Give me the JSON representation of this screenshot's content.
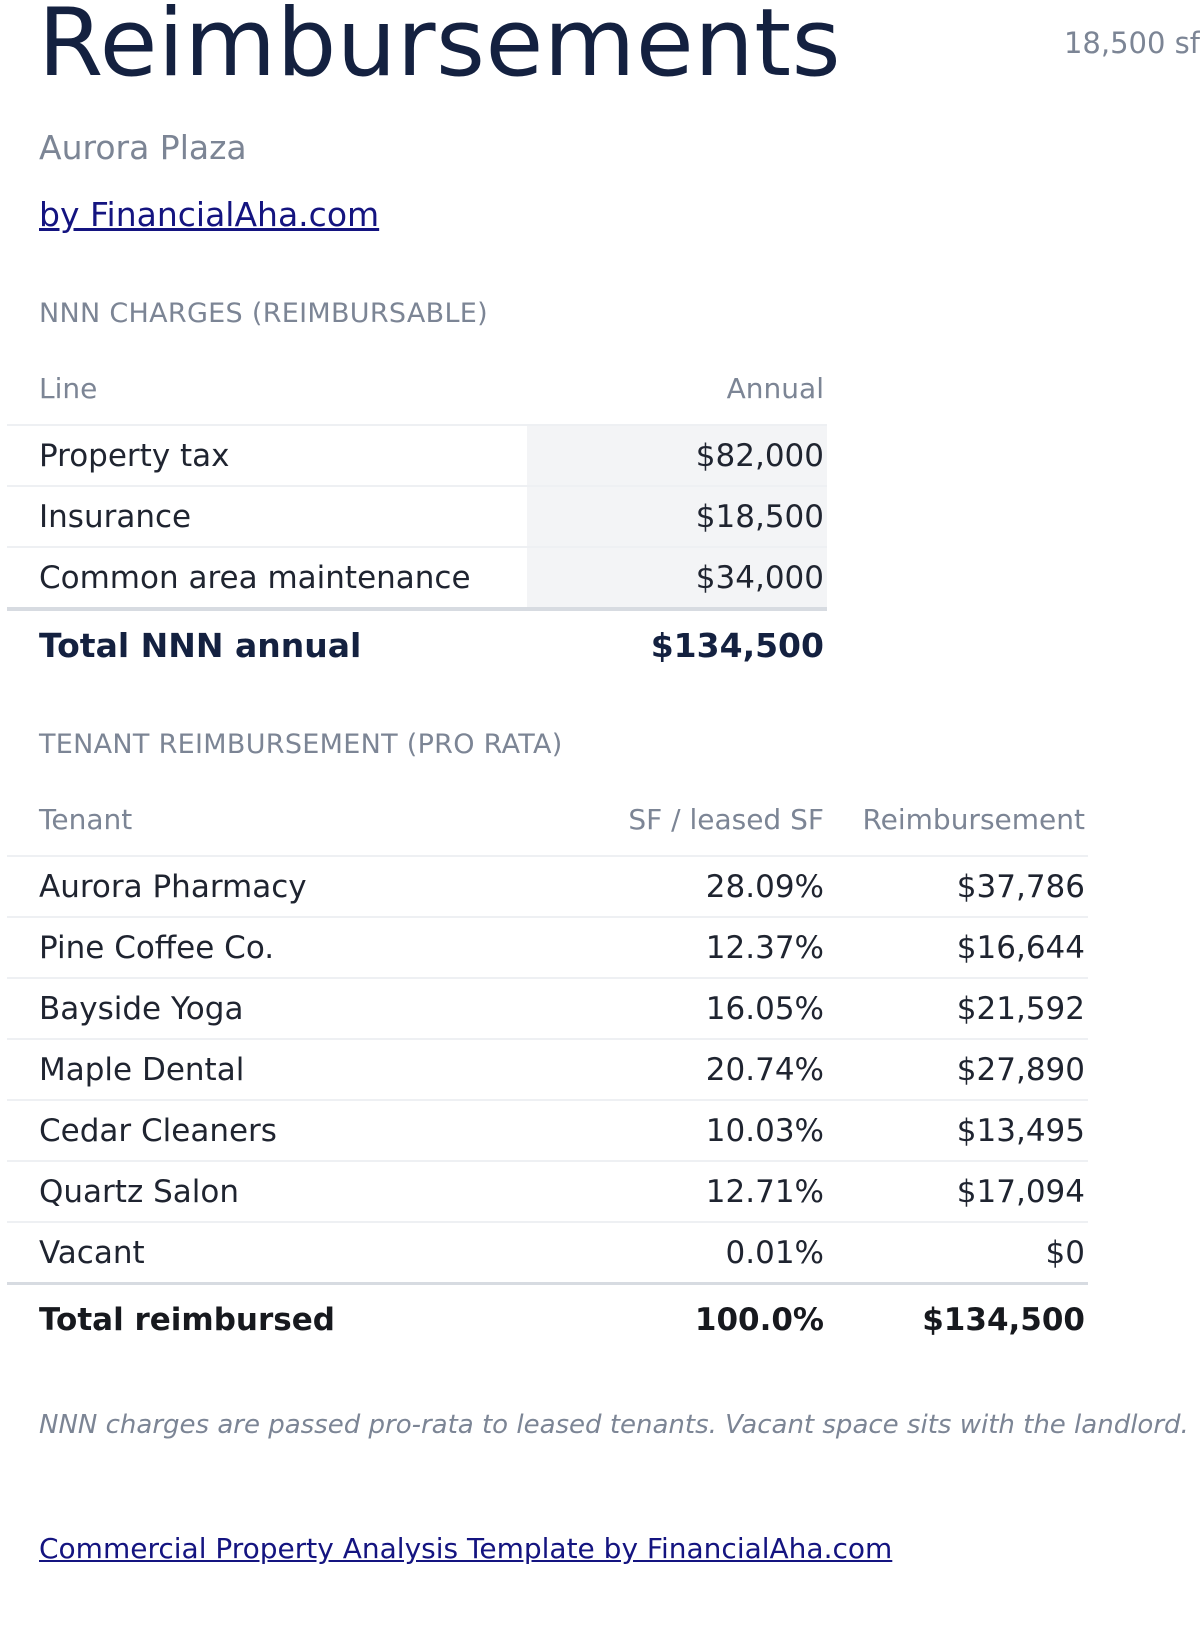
{
  "header": {
    "title": "Reimbursements",
    "area": "18,500 sf",
    "property": "Aurora Plaza",
    "byline": "by FinancialAha.com"
  },
  "nnn": {
    "section_label": "NNN CHARGES (REIMBURSABLE)",
    "columns": [
      "Line",
      "Annual"
    ],
    "rows": [
      {
        "line": "Property tax",
        "annual": "$82,000"
      },
      {
        "line": "Insurance",
        "annual": "$18,500"
      },
      {
        "line": "Common area maintenance",
        "annual": "$34,000"
      }
    ],
    "total": {
      "label": "Total NNN annual",
      "annual": "$134,500"
    }
  },
  "tenants": {
    "section_label": "TENANT REIMBURSEMENT (PRO RATA)",
    "columns": [
      "Tenant",
      "SF / leased SF",
      "Reimbursement"
    ],
    "rows": [
      {
        "tenant": "Aurora Pharmacy",
        "share": "28.09%",
        "reimbursement": "$37,786"
      },
      {
        "tenant": "Pine Coffee Co.",
        "share": "12.37%",
        "reimbursement": "$16,644"
      },
      {
        "tenant": "Bayside Yoga",
        "share": "16.05%",
        "reimbursement": "$21,592"
      },
      {
        "tenant": "Maple Dental",
        "share": "20.74%",
        "reimbursement": "$27,890"
      },
      {
        "tenant": "Cedar Cleaners",
        "share": "10.03%",
        "reimbursement": "$13,495"
      },
      {
        "tenant": "Quartz Salon",
        "share": "12.71%",
        "reimbursement": "$17,094"
      },
      {
        "tenant": "Vacant",
        "share": "0.01%",
        "reimbursement": "$0"
      }
    ],
    "total": {
      "label": "Total reimbursed",
      "share": "100.0%",
      "reimbursement": "$134,500"
    }
  },
  "footnote": "NNN charges are passed pro-rata to leased tenants. Vacant space sits with the landlord.",
  "footer_link": "Commercial Property Analysis Template by FinancialAha.com"
}
